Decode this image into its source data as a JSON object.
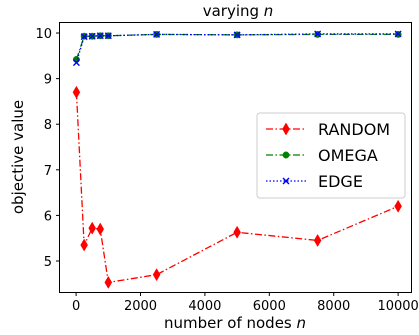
{
  "chart_data": {
    "type": "line",
    "title": "varying ",
    "title_var": "n",
    "xlabel": "number of nodes ",
    "xlabel_var": "n",
    "ylabel": "objective value",
    "xlim": [
      -500,
      10400
    ],
    "ylim": [
      4.32,
      10.22
    ],
    "xticks": [
      0,
      2000,
      4000,
      6000,
      8000,
      10000
    ],
    "yticks": [
      5,
      6,
      7,
      8,
      9,
      10
    ],
    "grid": false,
    "legend_position": "center-right",
    "series": [
      {
        "name": "RANDOM",
        "color": "#ff0000",
        "linestyle": "dashdot",
        "marker": "diamond",
        "x": [
          10,
          250,
          500,
          750,
          1000,
          2500,
          5000,
          7500,
          10000
        ],
        "y": [
          8.7,
          5.35,
          5.72,
          5.7,
          4.53,
          4.7,
          5.63,
          5.45,
          6.2
        ]
      },
      {
        "name": "OMEGA",
        "color": "#008000",
        "linestyle": "dashdot",
        "marker": "circle",
        "x": [
          10,
          250,
          500,
          750,
          1000,
          2500,
          5000,
          7500,
          10000
        ],
        "y": [
          9.42,
          9.93,
          9.93,
          9.94,
          9.94,
          9.97,
          9.96,
          9.97,
          9.97
        ]
      },
      {
        "name": "EDGE",
        "color": "#0000ff",
        "linestyle": "dotted",
        "marker": "x",
        "x": [
          10,
          250,
          500,
          750,
          1000,
          2500,
          5000,
          7500,
          10000
        ],
        "y": [
          9.35,
          9.92,
          9.93,
          9.94,
          9.94,
          9.97,
          9.96,
          9.98,
          9.98
        ]
      }
    ]
  }
}
